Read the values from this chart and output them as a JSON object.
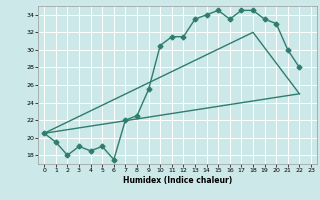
{
  "title": "",
  "xlabel": "Humidex (Indice chaleur)",
  "bg_color": "#cce8e8",
  "grid_color": "#ffffff",
  "line_color": "#2e7d6e",
  "markersize": 2.5,
  "linewidth": 1.0,
  "xlim": [
    -0.5,
    23.5
  ],
  "ylim": [
    17.0,
    35.0
  ],
  "xticks": [
    0,
    1,
    2,
    3,
    4,
    5,
    6,
    7,
    8,
    9,
    10,
    11,
    12,
    13,
    14,
    15,
    16,
    17,
    18,
    19,
    20,
    21,
    22,
    23
  ],
  "yticks": [
    18,
    20,
    22,
    24,
    26,
    28,
    30,
    32,
    34
  ],
  "main_x": [
    0,
    1,
    2,
    3,
    4,
    5,
    6,
    7,
    8,
    9,
    10,
    11,
    12,
    13,
    14,
    15,
    16,
    17,
    18,
    19,
    20,
    21,
    22
  ],
  "main_y": [
    20.5,
    19.5,
    18.0,
    19.0,
    18.5,
    19.0,
    17.5,
    22.0,
    22.5,
    25.5,
    30.5,
    31.5,
    31.5,
    33.5,
    34.0,
    34.5,
    33.5,
    34.5,
    34.5,
    33.5,
    33.0,
    30.0,
    28.0
  ],
  "line2_x": [
    0,
    22
  ],
  "line2_y": [
    20.5,
    25.0
  ],
  "line3_x": [
    0,
    18,
    22
  ],
  "line3_y": [
    20.5,
    32.0,
    25.0
  ]
}
